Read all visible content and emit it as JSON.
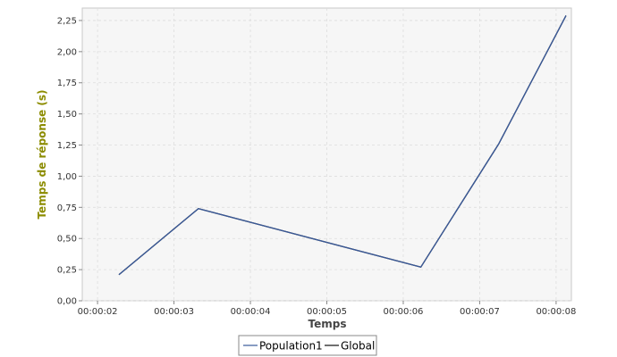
{
  "chart_data": {
    "type": "line",
    "xlabel": "Temps",
    "ylabel": "Temps de réponse (s)",
    "x_tick_labels": [
      "00:00:02",
      "00:00:03",
      "00:00:04",
      "00:00:05",
      "00:00:06",
      "00:00:07",
      "00:00:08"
    ],
    "x_ticks_seconds": [
      2,
      3,
      4,
      5,
      6,
      7,
      8
    ],
    "xlim": [
      1.8,
      8.2
    ],
    "y_tick_labels": [
      "0,00",
      "0,25",
      "0,50",
      "0,75",
      "1,00",
      "1,25",
      "1,50",
      "1,75",
      "2,00",
      "2,25"
    ],
    "y_ticks": [
      0,
      0.25,
      0.5,
      0.75,
      1.0,
      1.25,
      1.5,
      1.75,
      2.0,
      2.25
    ],
    "ylim": [
      0,
      2.35
    ],
    "grid": true,
    "legend_position": "bottom",
    "series": [
      {
        "name": "Population1",
        "color": "#3a5a9a",
        "x": [
          2.28,
          3.32,
          6.23,
          7.25,
          8.13
        ],
        "y": [
          0.21,
          0.74,
          0.27,
          1.26,
          2.29
        ]
      },
      {
        "name": "Global",
        "color": "#111111",
        "x": [
          2.28,
          3.32,
          6.23,
          7.25,
          8.13
        ],
        "y": [
          0.21,
          0.74,
          0.27,
          1.26,
          2.29
        ]
      }
    ],
    "colors": {
      "axis_title": "#8c8c00",
      "plot_background": "#f6f6f6",
      "grid": "#dddddd"
    }
  }
}
